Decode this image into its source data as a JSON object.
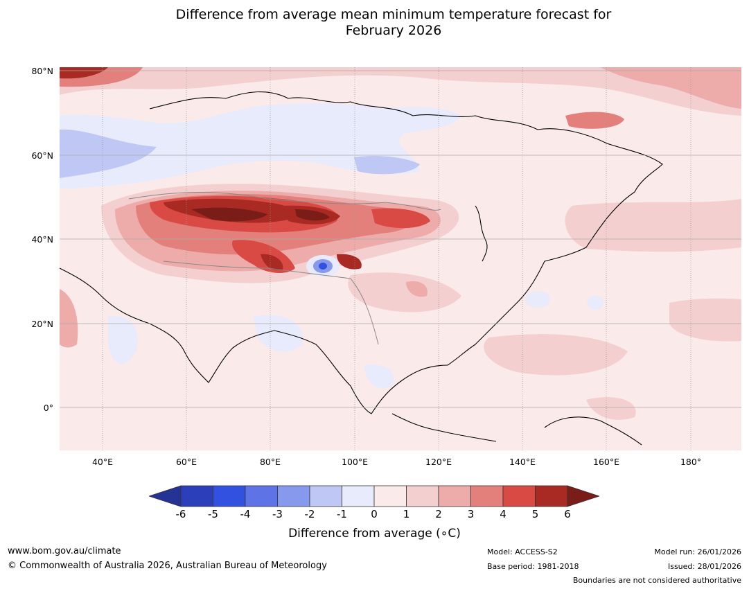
{
  "title": {
    "line1": "Difference from average mean minimum temperature forecast for",
    "line2": "February 2026"
  },
  "map": {
    "region": "Asia",
    "lat_ticks": [
      "80°N",
      "60°N",
      "40°N",
      "20°N",
      "0°"
    ],
    "lon_ticks": [
      "40°E",
      "60°E",
      "80°E",
      "100°E",
      "120°E",
      "140°E",
      "160°E",
      "180°"
    ]
  },
  "colorbar": {
    "title": "Difference from average (",
    "title_unit": "∘C)",
    "levels": [
      "-6",
      "-5",
      "-4",
      "-3",
      "-2",
      "-1",
      "0",
      "1",
      "2",
      "3",
      "4",
      "5",
      "6"
    ],
    "colors": [
      "#253494",
      "#2c3fba",
      "#3351e0",
      "#5e73e6",
      "#8799ec",
      "#bfc8f4",
      "#e8ebfb",
      "#fbeaea",
      "#f4cfcf",
      "#edacaa",
      "#e3807b",
      "#d84a43",
      "#a82a23",
      "#7a1c17"
    ]
  },
  "footer": {
    "url": "www.bom.gov.au/climate",
    "copyright": "© Commonwealth of Australia 2026, Australian Bureau of Meteorology",
    "model": "Model: ACCESS-S2",
    "base_period": "Base period: 1981-2018",
    "model_run": "Model run: 26/01/2026",
    "issued": "Issued: 28/01/2026",
    "disclaimer": "Boundaries are not considered authoritative"
  }
}
